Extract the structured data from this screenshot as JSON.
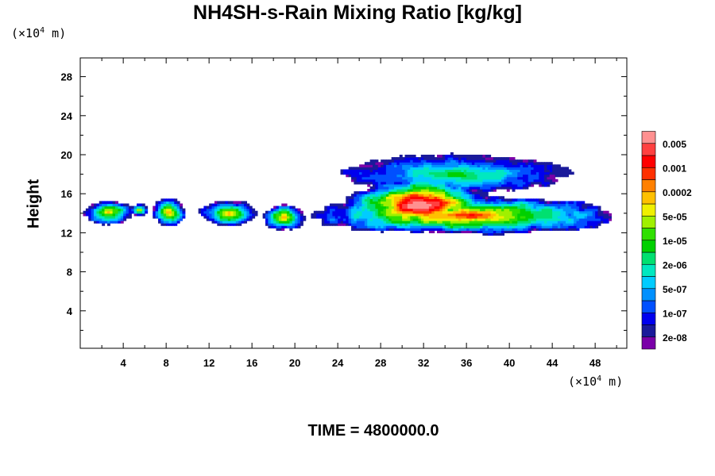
{
  "chart_data": {
    "type": "heatmap",
    "title": "NH4SH-s-Rain Mixing Ratio [kg/kg]",
    "xlabel": "",
    "ylabel": "Height",
    "x_unit_base": "(×10",
    "x_unit_exp": "4",
    "x_unit_tail": " m)",
    "y_unit_base": "(×10",
    "y_unit_exp": "4",
    "y_unit_tail": " m)",
    "xlim": [
      0,
      51
    ],
    "ylim": [
      0,
      30
    ],
    "x_ticks": [
      4,
      8,
      12,
      16,
      20,
      24,
      28,
      32,
      36,
      40,
      44,
      48
    ],
    "y_ticks": [
      4,
      8,
      12,
      16,
      20,
      24,
      28
    ],
    "colorbar": {
      "colors": [
        "#7a00a8",
        "#1a1a9a",
        "#0000ee",
        "#0050ff",
        "#0090ff",
        "#00ccff",
        "#00e8c0",
        "#00e070",
        "#00d000",
        "#30e000",
        "#a0f000",
        "#f0f000",
        "#ffc000",
        "#ff8000",
        "#ff3000",
        "#ff0000",
        "#ff4040",
        "#ff9090"
      ],
      "labels": [
        "2e-08",
        "1e-07",
        "5e-07",
        "2e-06",
        "1e-05",
        "5e-05",
        "0.0002",
        "0.001",
        "0.005"
      ]
    },
    "regions": [
      {
        "x": [
          0.2,
          4.8
        ],
        "y": [
          12.8,
          15.2
        ],
        "peak": 0.58
      },
      {
        "x": [
          4.6,
          6.2
        ],
        "y": [
          13.6,
          14.8
        ],
        "peak": 0.55
      },
      {
        "x": [
          6.6,
          9.6
        ],
        "y": [
          12.6,
          15.4
        ],
        "peak": 0.62
      },
      {
        "x": [
          11.2,
          16.2
        ],
        "y": [
          12.6,
          15.2
        ],
        "peak": 0.62
      },
      {
        "x": [
          17.0,
          20.8
        ],
        "y": [
          12.2,
          14.8
        ],
        "peak": 0.6
      },
      {
        "x": [
          21.5,
          49.8
        ],
        "y": [
          11.8,
          15.6
        ],
        "peak": 0.7
      },
      {
        "x": [
          25.0,
          38.0
        ],
        "y": [
          12.0,
          17.5
        ],
        "peak": 0.95
      },
      {
        "x": [
          24.5,
          45.5
        ],
        "y": [
          16.0,
          19.8
        ],
        "peak": 0.38
      }
    ]
  },
  "time_label": "TIME = 4800000.0"
}
